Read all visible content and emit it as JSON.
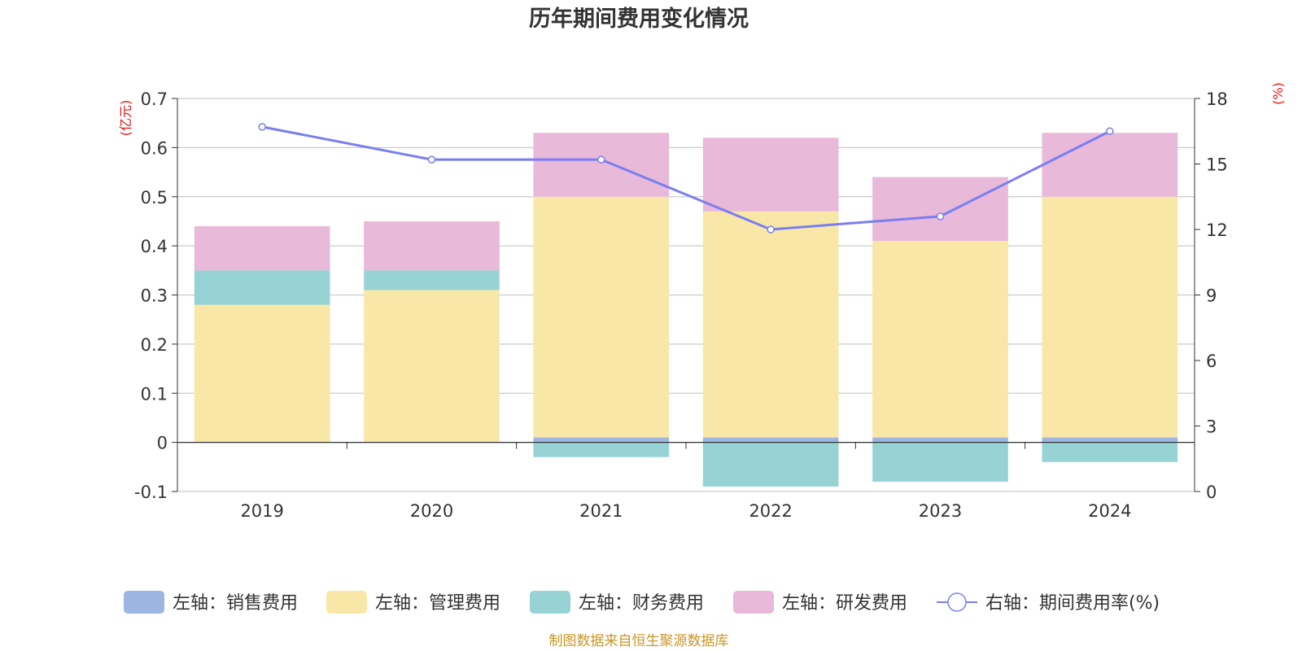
{
  "chart_data": {
    "type": "bar",
    "title": "历年期间费用变化情况",
    "categories": [
      "2019",
      "2020",
      "2021",
      "2022",
      "2023",
      "2024"
    ],
    "left_axis": {
      "unit": "(亿元)",
      "ylim": [
        -0.1,
        0.7
      ],
      "ticks": [
        "0.7",
        "0.6",
        "0.5",
        "0.4",
        "0.3",
        "0.2",
        "0.1",
        "0",
        "-0.1"
      ]
    },
    "right_axis": {
      "unit": "(%)",
      "ylim": [
        0,
        18
      ],
      "ticks": [
        "18",
        "15",
        "12",
        "9",
        "6",
        "3",
        "0"
      ]
    },
    "series": [
      {
        "name": "左轴：销售费用",
        "type": "bar",
        "axis": "left",
        "color": "#9db6e1",
        "values": [
          0,
          0,
          0.01,
          0.01,
          0.01,
          0.01
        ]
      },
      {
        "name": "左轴：管理费用",
        "type": "bar",
        "axis": "left",
        "color": "#f9e7a8",
        "values": [
          0.28,
          0.31,
          0.49,
          0.46,
          0.4,
          0.49
        ]
      },
      {
        "name": "左轴：财务费用",
        "type": "bar",
        "axis": "left",
        "color": "#97d3d5",
        "values": [
          0.07,
          0.04,
          -0.03,
          -0.09,
          -0.08,
          -0.04
        ]
      },
      {
        "name": "左轴：研发费用",
        "type": "bar",
        "axis": "left",
        "color": "#e8b9d9",
        "values": [
          0.09,
          0.1,
          0.13,
          0.15,
          0.13,
          0.13
        ]
      },
      {
        "name": "右轴：期间费用率(%)",
        "type": "line",
        "axis": "right",
        "color": "#7b7ef0",
        "values": [
          16.7,
          15.2,
          15.2,
          12.0,
          12.6,
          16.5
        ]
      }
    ],
    "grid": true,
    "legend_position": "bottom"
  },
  "source_note": "制图数据来自恒生聚源数据库"
}
